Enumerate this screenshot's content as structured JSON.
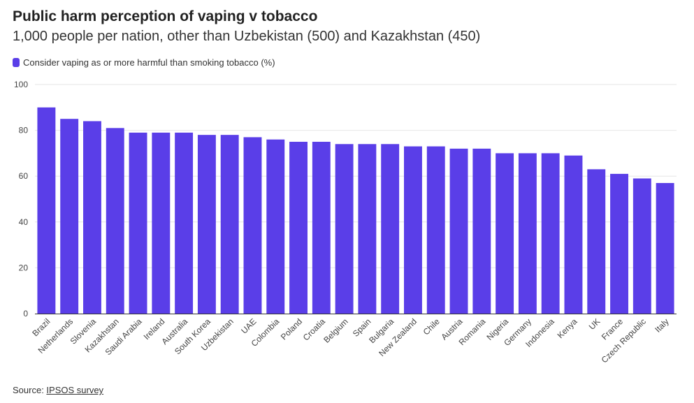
{
  "header": {
    "title": "Public harm perception of vaping v tobacco",
    "subtitle": "1,000 people per nation, other than Uzbekistan (500) and Kazakhstan (450)"
  },
  "legend": {
    "label": "Consider vaping as or more harmful than smoking tobacco (%)"
  },
  "footer": {
    "source_prefix": "Source: ",
    "source_link": "IPSOS survey"
  },
  "colors": {
    "bar": "#5a3ee8",
    "grid": "#e6e6e6",
    "axis": "#333333"
  },
  "chart_data": {
    "type": "bar",
    "title": "Public harm perception of vaping v tobacco",
    "subtitle": "1,000 people per nation, other than Uzbekistan (500) and Kazakhstan (450)",
    "xlabel": "",
    "ylabel": "",
    "ylim": [
      0,
      100
    ],
    "yticks": [
      0,
      20,
      40,
      60,
      80,
      100
    ],
    "grid": true,
    "legend_position": "top-left",
    "categories": [
      "Brazil",
      "Netherlands",
      "Slovenia",
      "Kazakhstan",
      "Saudi Arabia",
      "Ireland",
      "Australia",
      "South Korea",
      "Uzbekistan",
      "UAE",
      "Colombia",
      "Poland",
      "Croatia",
      "Belgium",
      "Spain",
      "Bulgaria",
      "New Zealand",
      "Chile",
      "Austria",
      "Romania",
      "Nigeria",
      "Germany",
      "Indonesia",
      "Kenya",
      "UK",
      "France",
      "Czech Republic",
      "Italy"
    ],
    "series": [
      {
        "name": "Consider vaping as or more harmful than smoking tobacco (%)",
        "values": [
          90,
          85,
          84,
          81,
          79,
          79,
          79,
          78,
          78,
          77,
          76,
          75,
          75,
          74,
          74,
          74,
          73,
          73,
          72,
          72,
          70,
          70,
          70,
          69,
          63,
          61,
          59,
          57
        ]
      }
    ]
  }
}
